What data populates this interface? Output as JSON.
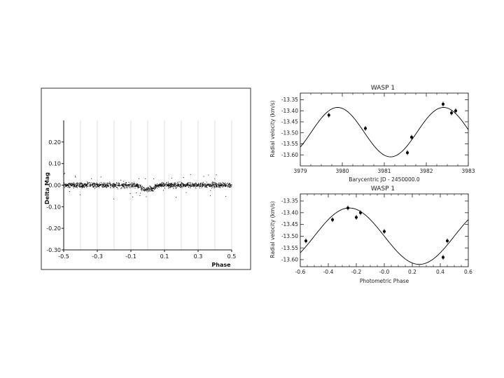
{
  "colors": {
    "ink": "#111111",
    "grid": "#d8d8d8",
    "panel_border": "#333333",
    "curve": "#000000"
  },
  "chart_data": [
    {
      "id": "light-curve",
      "type": "scatter",
      "title": "",
      "xlabel": "Phase",
      "ylabel": "Delta Mag",
      "xlim": [
        -0.5,
        0.5
      ],
      "ylim": [
        -0.3,
        0.3
      ],
      "y_inverted": true,
      "grid": true,
      "x_ticks": [
        -0.5,
        -0.3,
        -0.1,
        0.1,
        0.3,
        0.5
      ],
      "x_tick_labels": [
        "-0.5",
        "-0.3",
        "-0.1",
        "0.1",
        "0.3",
        "0.5"
      ],
      "y_ticks": [
        0.2,
        0.1,
        0.0,
        -0.1,
        -0.2,
        -0.3
      ],
      "y_tick_labels": [
        "0.20",
        "0.10",
        "0.00",
        "-0.10",
        "-0.20",
        "-0.30"
      ],
      "series": [
        {
          "values_description_free": true,
          "segments": [
            {
              "x_from": -0.5,
              "x_to": -0.06,
              "y": 0.0
            },
            {
              "x_from": -0.06,
              "x_to": -0.04,
              "y": -0.006
            },
            {
              "x_from": -0.04,
              "x_to": 0.04,
              "y": -0.018
            },
            {
              "x_from": 0.04,
              "x_to": 0.06,
              "y": -0.006
            },
            {
              "x_from": 0.06,
              "x_to": 0.5,
              "y": 0.0
            }
          ],
          "scatter_sd": 0.008
        }
      ]
    },
    {
      "id": "rv-time",
      "type": "scatter",
      "title": "WASP 1",
      "xlabel": "Barycentric JD - 2450000.0",
      "ylabel": "Radial velocity (km/s)",
      "xlim": [
        3979,
        3983
      ],
      "ylim": [
        -13.65,
        -13.32
      ],
      "x_ticks": [
        3979,
        3980,
        3981,
        3982,
        3983
      ],
      "x_tick_labels": [
        "3979",
        "3980",
        "3981",
        "3982",
        "3983"
      ],
      "y_ticks": [
        -13.35,
        -13.4,
        -13.45,
        -13.5,
        -13.55,
        -13.6
      ],
      "y_tick_labels": [
        "-13.35",
        "-13.40",
        "-13.45",
        "-13.50",
        "-13.55",
        "-13.60"
      ],
      "model": {
        "center": -13.497,
        "amplitude": 0.112,
        "period_days": 2.52,
        "t_max": 3979.89
      },
      "points": [
        {
          "x": 3979.68,
          "y": -13.42
        },
        {
          "x": 3980.55,
          "y": -13.48
        },
        {
          "x": 3981.55,
          "y": -13.59
        },
        {
          "x": 3981.65,
          "y": -13.52
        },
        {
          "x": 3982.4,
          "y": -13.37
        },
        {
          "x": 3982.6,
          "y": -13.41
        },
        {
          "x": 3982.7,
          "y": -13.4
        }
      ]
    },
    {
      "id": "rv-phase",
      "type": "scatter",
      "title": "WASP 1",
      "xlabel": "Photometric Phase",
      "ylabel": "Radial velocity (km/s)",
      "xlim": [
        -0.6,
        0.6
      ],
      "ylim": [
        -13.63,
        -13.32
      ],
      "x_ticks": [
        -0.6,
        -0.4,
        -0.2,
        0.0,
        0.2,
        0.4,
        0.6
      ],
      "x_tick_labels": [
        "-0.6",
        "-0.4",
        "-0.2",
        "-0.0",
        "0.2",
        "0.4",
        "0.6"
      ],
      "y_ticks": [
        -13.35,
        -13.4,
        -13.45,
        -13.5,
        -13.55,
        -13.6
      ],
      "y_tick_labels": [
        "-13.35",
        "-13.40",
        "-13.45",
        "-13.50",
        "-13.55",
        "-13.60"
      ],
      "model": {
        "center": -13.5,
        "amplitude": 0.12,
        "phase_max": -0.25
      },
      "points": [
        {
          "x": -0.56,
          "y": -13.52
        },
        {
          "x": -0.37,
          "y": -13.43
        },
        {
          "x": -0.26,
          "y": -13.38
        },
        {
          "x": -0.2,
          "y": -13.42
        },
        {
          "x": -0.17,
          "y": -13.4
        },
        {
          "x": 0.0,
          "y": -13.48
        },
        {
          "x": 0.42,
          "y": -13.59
        },
        {
          "x": 0.45,
          "y": -13.52
        }
      ]
    }
  ]
}
